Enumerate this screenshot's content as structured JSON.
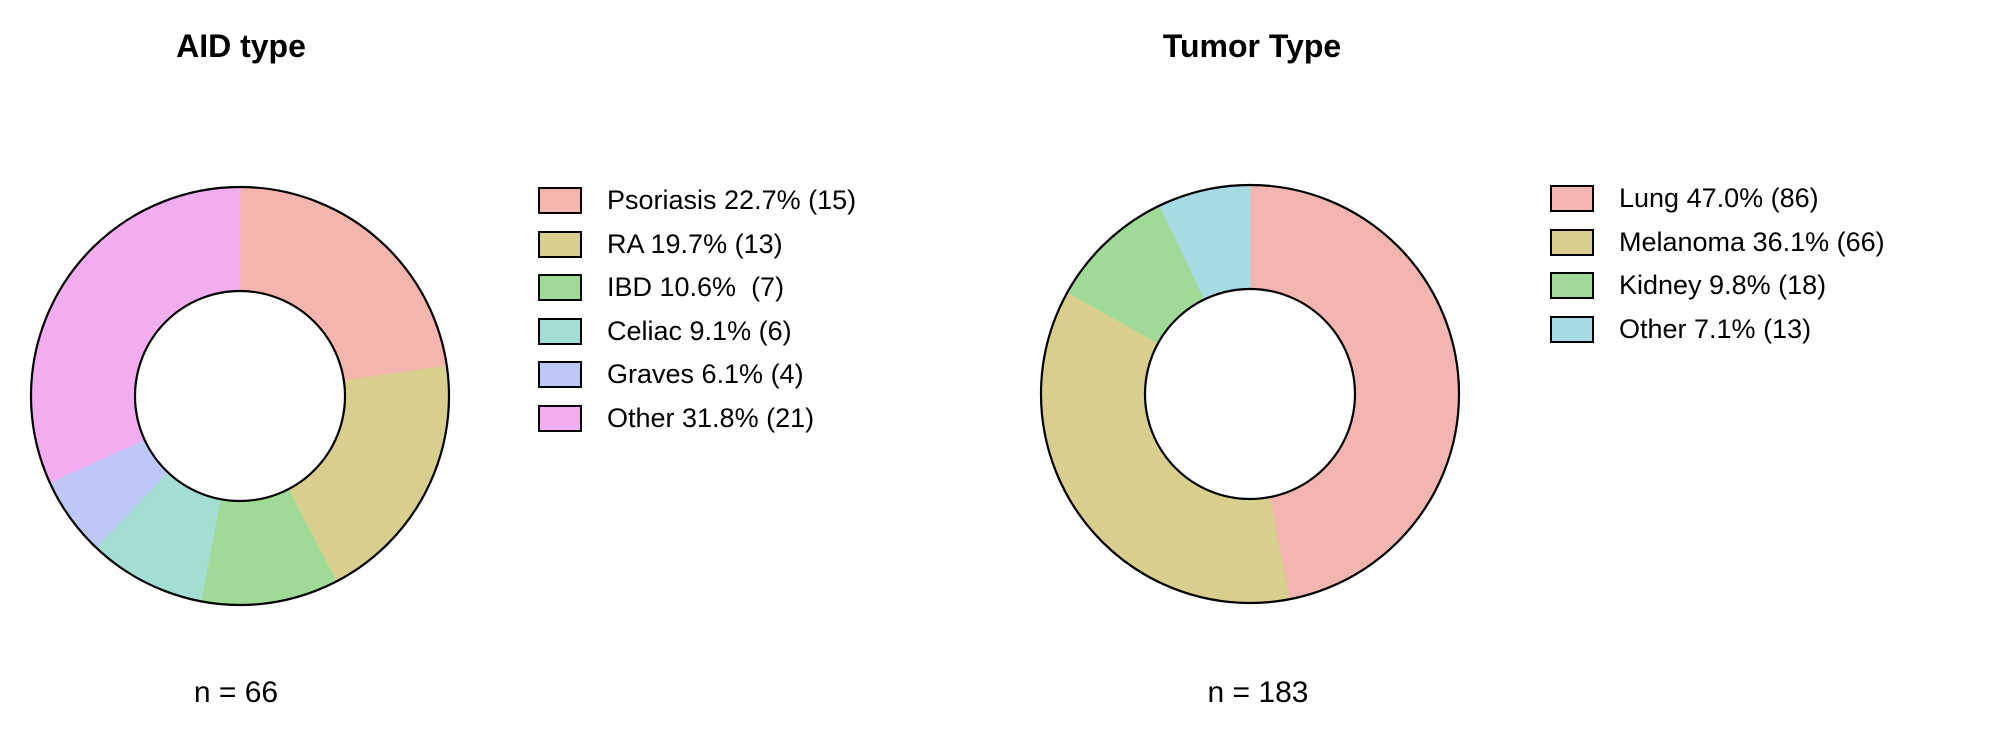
{
  "figure": {
    "background": "#FFFFFF",
    "outline_color": "#000000",
    "text_color": "#000000"
  },
  "chart_data": [
    {
      "type": "pie",
      "variant": "donut",
      "title": "AID type",
      "n_label": "n = 66",
      "total_n": 66,
      "direction": "clockwise",
      "start_angle": "12-oclock",
      "hole_ratio": 0.5,
      "legend_position": "right",
      "slices": [
        {
          "label": "Psoriasis",
          "percent": 22.7,
          "count": 15,
          "color": "#F3B5AD",
          "legend_text": "Psoriasis 22.7% (15)"
        },
        {
          "label": "RA",
          "percent": 19.7,
          "count": 13,
          "color": "#D8CE8D",
          "legend_text": "RA 19.7% (13)"
        },
        {
          "label": "IBD",
          "percent": 10.6,
          "count": 7,
          "color": "#A0DA97",
          "legend_text": "IBD 10.6%  (7)"
        },
        {
          "label": "Celiac",
          "percent": 9.1,
          "count": 6,
          "color": "#A4DDD2",
          "legend_text": "Celiac 9.1% (6)"
        },
        {
          "label": "Graves",
          "percent": 6.1,
          "count": 4,
          "color": "#BDC8F6",
          "legend_text": "Graves 6.1% (4)"
        },
        {
          "label": "Other",
          "percent": 31.8,
          "count": 21,
          "color": "#F2ACF0",
          "legend_text": "Other 31.8% (21)"
        }
      ]
    },
    {
      "type": "pie",
      "variant": "donut",
      "title": "Tumor Type",
      "n_label": "n = 183",
      "total_n": 183,
      "direction": "clockwise",
      "start_angle": "12-oclock",
      "hole_ratio": 0.5,
      "legend_position": "right",
      "slices": [
        {
          "label": "Lung",
          "percent": 47.0,
          "count": 86,
          "color": "#F3B5AF",
          "legend_text": "Lung 47.0% (86)"
        },
        {
          "label": "Melanoma",
          "percent": 36.1,
          "count": 66,
          "color": "#D8CE8D",
          "legend_text": "Melanoma 36.1% (66)"
        },
        {
          "label": "Kidney",
          "percent": 9.8,
          "count": 18,
          "color": "#A0DA97",
          "legend_text": "Kidney 9.8% (18)"
        },
        {
          "label": "Other",
          "percent": 7.1,
          "count": 13,
          "color": "#A6DBE4",
          "legend_text": "Other 7.1% (13)"
        }
      ]
    }
  ]
}
